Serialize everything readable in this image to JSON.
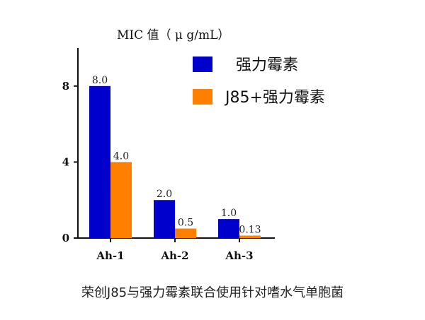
{
  "chart_data": {
    "type": "bar",
    "title": "MIC 值（ μ g/mL）",
    "categories": [
      "Ah-1",
      "Ah-2",
      "Ah-3"
    ],
    "series": [
      {
        "name": "强力霉素",
        "values": [
          8.0,
          2.0,
          1.0
        ],
        "labels": [
          "8.0",
          "2.0",
          "1.0"
        ],
        "color": "#0000cc"
      },
      {
        "name": "J85+强力霉素",
        "values": [
          4.0,
          0.5,
          0.13
        ],
        "labels": [
          "4.0",
          "0.5",
          "0.13"
        ],
        "color": "#ff8000"
      }
    ],
    "yticks": [
      "0",
      "4",
      "8"
    ],
    "ylim": [
      0,
      10
    ],
    "legend": "top-right",
    "grid": false
  },
  "caption": "荣创J85与强力霉素联合使用针对嗜水气单胞菌"
}
